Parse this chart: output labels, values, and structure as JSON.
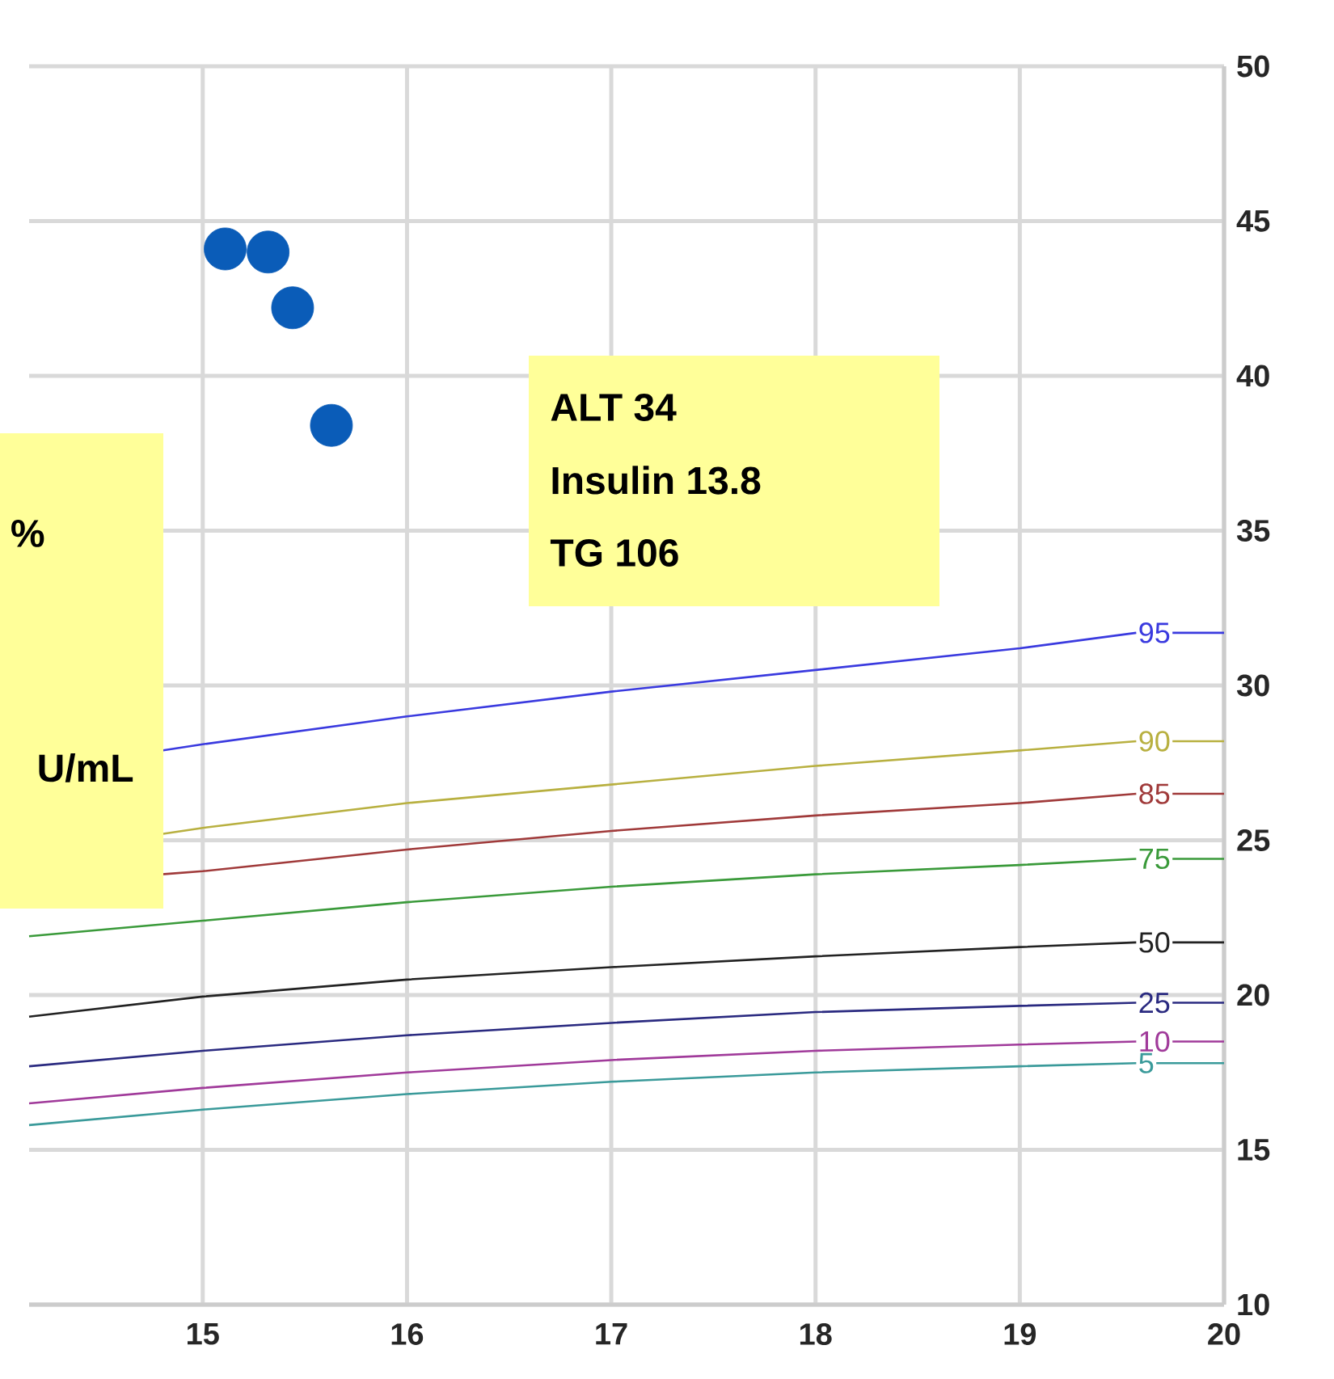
{
  "chart_data": {
    "type": "line",
    "xlim": [
      14.15,
      20
    ],
    "ylim": [
      10,
      50
    ],
    "xticks": [
      15,
      16,
      17,
      18,
      19,
      20
    ],
    "yticks": [
      10,
      15,
      20,
      25,
      30,
      35,
      40,
      45,
      50
    ],
    "grid": true,
    "legend": "right",
    "series": [
      {
        "name": "95",
        "color": "#3a3adf",
        "x": [
          14.8,
          15,
          16,
          17,
          18,
          19,
          19.57
        ],
        "values": [
          27.9,
          28.1,
          29.0,
          29.8,
          30.5,
          31.2,
          31.7
        ]
      },
      {
        "name": "90",
        "color": "#b8b040",
        "x": [
          14.8,
          15,
          16,
          17,
          18,
          19,
          19.57
        ],
        "values": [
          25.2,
          25.4,
          26.2,
          26.8,
          27.4,
          27.9,
          28.2
        ]
      },
      {
        "name": "85",
        "color": "#a03a3a",
        "x": [
          14.8,
          15,
          16,
          17,
          18,
          19,
          19.57
        ],
        "values": [
          23.9,
          24.0,
          24.7,
          25.3,
          25.8,
          26.2,
          26.5
        ]
      },
      {
        "name": "75",
        "color": "#3a9a3a",
        "x": [
          14.15,
          15,
          16,
          17,
          18,
          19,
          19.57
        ],
        "values": [
          21.9,
          22.4,
          23.0,
          23.5,
          23.9,
          24.2,
          24.4
        ]
      },
      {
        "name": "50",
        "color": "#222222",
        "x": [
          14.15,
          15,
          16,
          17,
          18,
          19,
          19.57
        ],
        "values": [
          19.3,
          19.95,
          20.5,
          20.9,
          21.25,
          21.55,
          21.7
        ]
      },
      {
        "name": "25",
        "color": "#2a2a80",
        "x": [
          14.15,
          15,
          16,
          17,
          18,
          19,
          19.57
        ],
        "values": [
          17.7,
          18.2,
          18.7,
          19.1,
          19.45,
          19.65,
          19.75
        ]
      },
      {
        "name": "10",
        "color": "#a03a9a",
        "x": [
          14.15,
          15,
          16,
          17,
          18,
          19,
          19.57
        ],
        "values": [
          16.5,
          17.0,
          17.5,
          17.9,
          18.2,
          18.4,
          18.5
        ]
      },
      {
        "name": "5",
        "color": "#3a9a9a",
        "x": [
          14.15,
          15,
          16,
          17,
          18,
          19,
          19.57
        ],
        "values": [
          15.8,
          16.3,
          16.8,
          17.2,
          17.5,
          17.7,
          17.8
        ]
      },
      {
        "type": "scatter",
        "marker": "circle",
        "color": "#0a5cb8",
        "x": [
          15.11,
          15.32,
          15.44,
          15.63
        ],
        "values": [
          44.1,
          44.0,
          42.2,
          38.4
        ]
      }
    ],
    "annotations": [
      "ALT 34",
      "Insulin 13.8",
      "TG 106",
      "%",
      "U/mL"
    ]
  }
}
